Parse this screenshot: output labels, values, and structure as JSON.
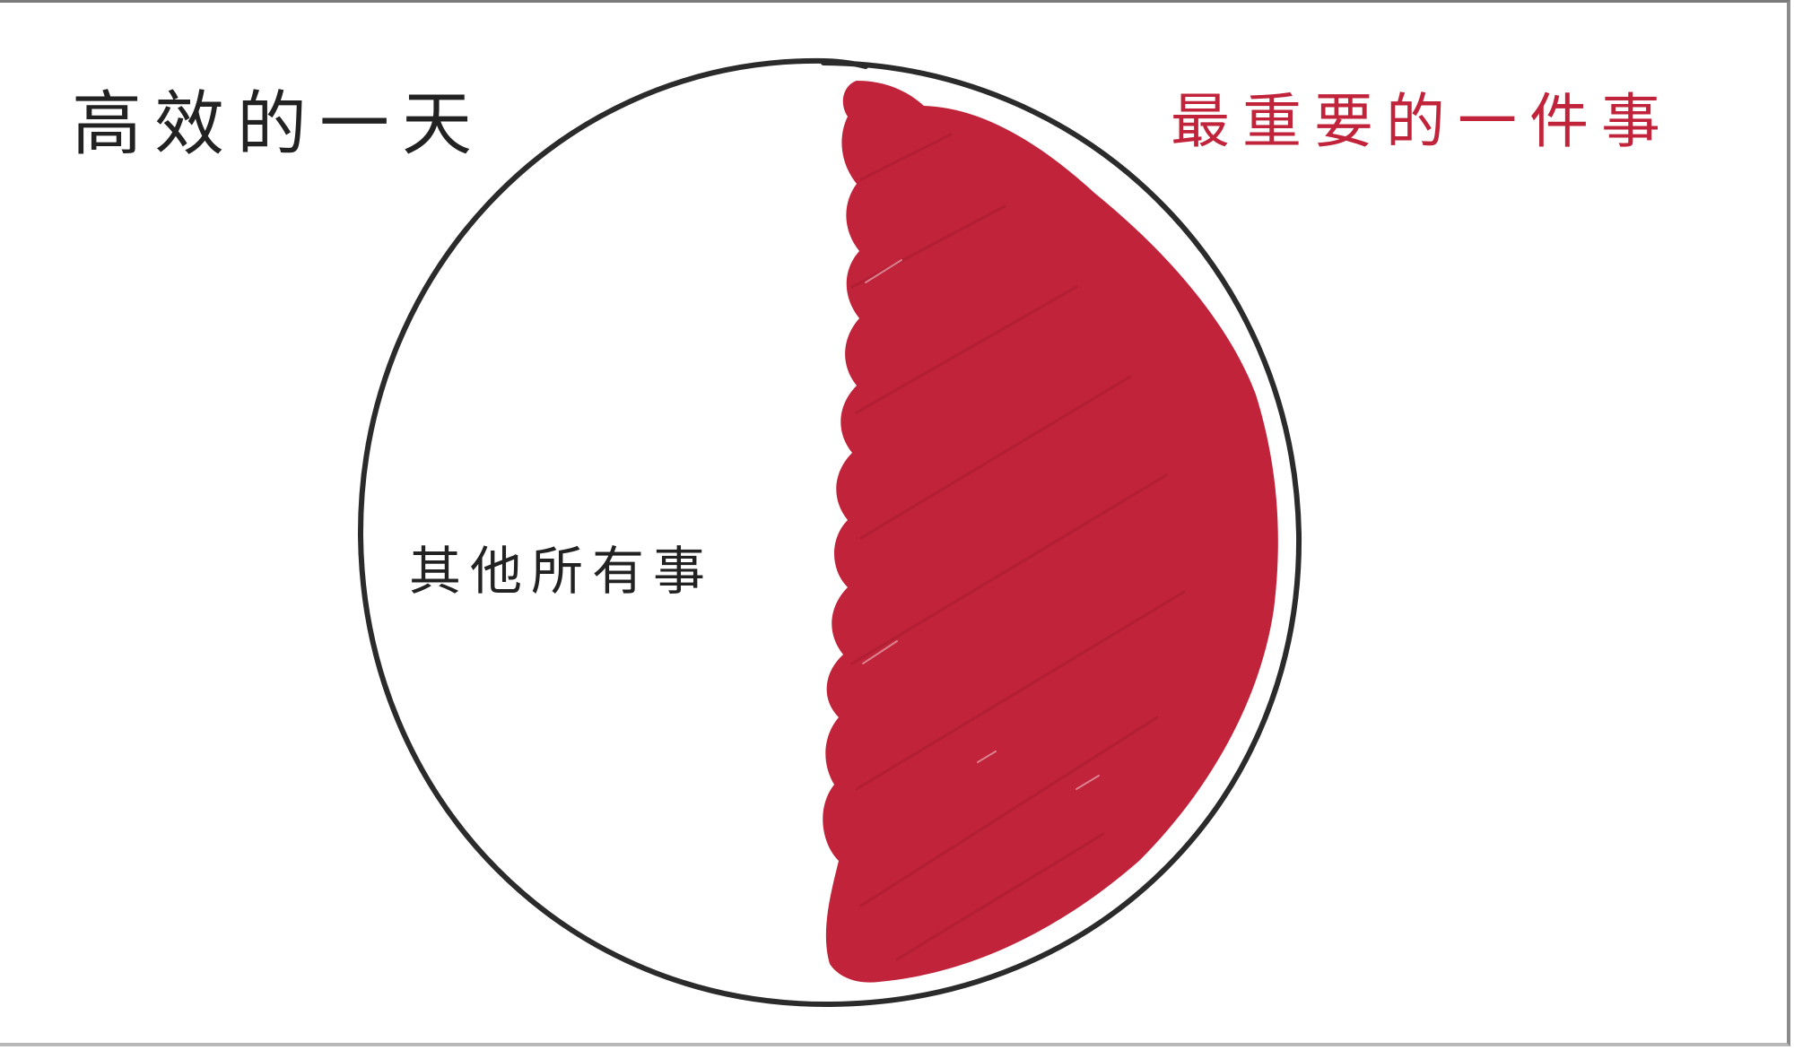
{
  "diagram": {
    "title_left": "高效的一天",
    "title_right": "最重要的一件事",
    "label_other": "其他所有事",
    "colors": {
      "ink": "#222222",
      "highlight": "#c0233a",
      "background": "#ffffff"
    }
  }
}
